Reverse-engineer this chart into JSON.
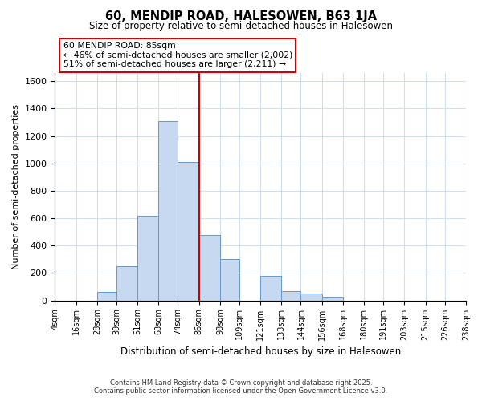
{
  "title": "60, MENDIP ROAD, HALESOWEN, B63 1JA",
  "subtitle": "Size of property relative to semi-detached houses in Halesowen",
  "xlabel": "Distribution of semi-detached houses by size in Halesowen",
  "ylabel": "Number of semi-detached properties",
  "bar_color": "#c6d9f1",
  "bar_edge_color": "#6699cc",
  "bins": [
    4,
    16,
    28,
    39,
    51,
    63,
    74,
    86,
    98,
    109,
    121,
    133,
    144,
    156,
    168,
    180,
    191,
    203,
    215,
    226,
    238
  ],
  "counts": [
    0,
    0,
    60,
    250,
    620,
    1310,
    1010,
    480,
    300,
    0,
    180,
    70,
    50,
    25,
    0,
    0,
    0,
    0,
    0,
    0
  ],
  "tick_labels": [
    "4sqm",
    "16sqm",
    "28sqm",
    "39sqm",
    "51sqm",
    "63sqm",
    "74sqm",
    "86sqm",
    "98sqm",
    "109sqm",
    "121sqm",
    "133sqm",
    "144sqm",
    "156sqm",
    "168sqm",
    "180sqm",
    "191sqm",
    "203sqm",
    "215sqm",
    "226sqm",
    "238sqm"
  ],
  "vline_x": 86,
  "vline_color": "#cc0000",
  "ylim": [
    0,
    1660
  ],
  "annotation_title": "60 MENDIP ROAD: 85sqm",
  "annotation_line1": "← 46% of semi-detached houses are smaller (2,002)",
  "annotation_line2": "51% of semi-detached houses are larger (2,211) →",
  "footnote1": "Contains HM Land Registry data © Crown copyright and database right 2025.",
  "footnote2": "Contains public sector information licensed under the Open Government Licence v3.0.",
  "bg_color": "#ffffff",
  "grid_color": "#d0dff0"
}
